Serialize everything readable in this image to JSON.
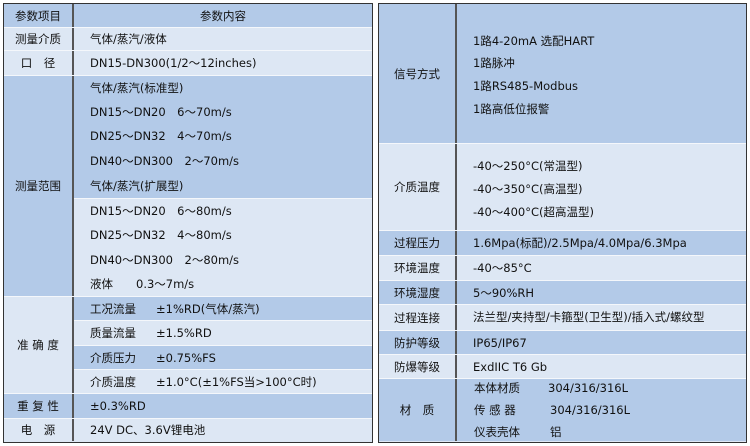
{
  "colors": {
    "dark": "#b3cae8",
    "light": "#dde7f4",
    "border": "#333333"
  },
  "left": {
    "header": {
      "label": "参数项目",
      "value": "参数内容"
    },
    "medium": {
      "label": "测量介质",
      "value": "气体/蒸汽/液体"
    },
    "bore": {
      "label": "口　径",
      "value": "DN15-DN300(1/2～12inches)"
    },
    "range": {
      "label": "测量范围",
      "lines": [
        "气体/蒸汽(标准型)",
        "DN15～DN20　6～70m/s",
        "DN25～DN32　4～70m/s",
        "DN40～DN300　2～70m/s",
        "气体/蒸汽(扩展型)",
        "DN15～DN20　6～80m/s",
        "DN25～DN32　4～80m/s",
        "DN40～DN300　2～80m/s",
        "液体　　0.3～7m/s"
      ]
    },
    "accuracy": {
      "label": "准 确 度",
      "items": [
        {
          "k": "工况流量",
          "v": "±1%RD(气体/蒸汽)"
        },
        {
          "k": "质量流量",
          "v": "±1.5%RD"
        },
        {
          "k": "介质压力",
          "v": "±0.75%FS"
        },
        {
          "k": "介质温度",
          "v": "±1.0°C(±1%FS当>100°C时)"
        }
      ]
    },
    "repeat": {
      "label": "重 复 性",
      "value": "±0.3%RD"
    },
    "power": {
      "label": "电　源",
      "value": "24V DC、3.6V锂电池"
    }
  },
  "right": {
    "signal": {
      "label": "信号方式",
      "lines": [
        "1路4-20mA 选配HART",
        "1路脉冲",
        "1路RS485-Modbus",
        "1路高低位报警"
      ]
    },
    "temp": {
      "label": "介质温度",
      "lines": [
        "-40～250°C(常温型)",
        "-40～350°C(高温型)",
        "-40～400°C(超高温型)"
      ]
    },
    "pressure": {
      "label": "过程压力",
      "value": "1.6Mpa(标配)/2.5Mpa/4.0Mpa/6.3Mpa"
    },
    "amb_temp": {
      "label": "环境温度",
      "value": "-40～85°C"
    },
    "humidity": {
      "label": "环境湿度",
      "value": "5～90%RH"
    },
    "connection": {
      "label": "过程连接",
      "value": "法兰型/夹持型/卡箍型(卫生型)/插入式/螺纹型"
    },
    "protection": {
      "label": "防护等级",
      "value": "IP65/IP67"
    },
    "explosion": {
      "label": "防爆等级",
      "value": "ExdIIC T6 Gb"
    },
    "material": {
      "label": "材　质",
      "items": [
        {
          "k": "本体材质",
          "v": "304/316/316L"
        },
        {
          "k": "传 感 器",
          "v": "304/316/316L"
        },
        {
          "k": "仪表壳体",
          "v": "铝"
        }
      ]
    }
  }
}
